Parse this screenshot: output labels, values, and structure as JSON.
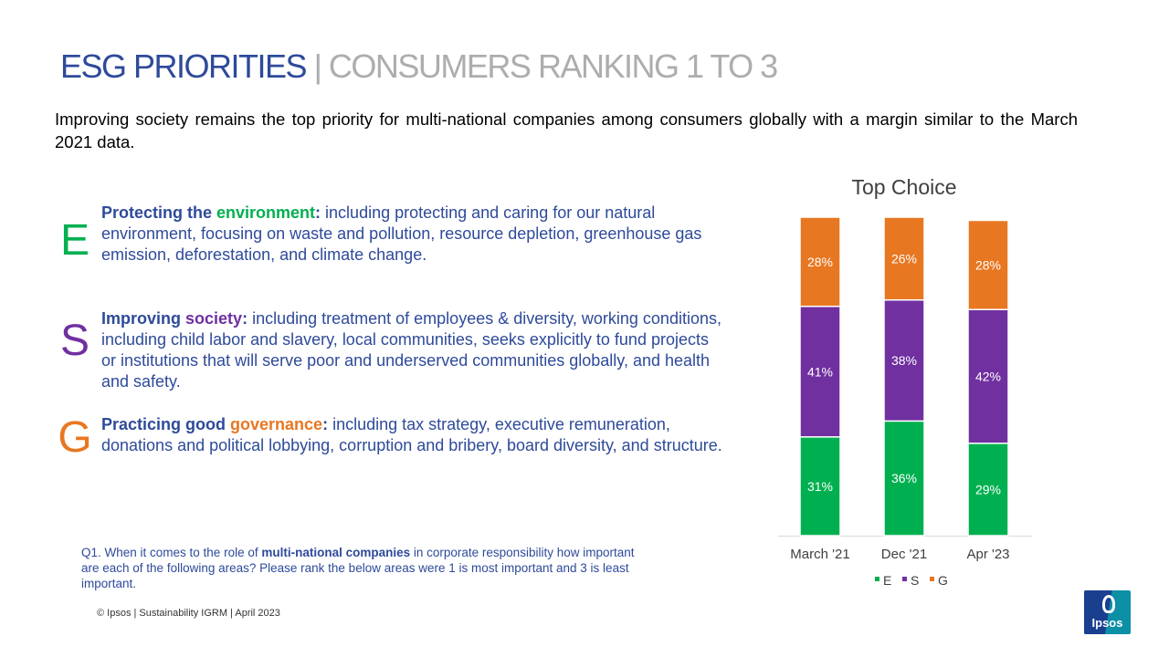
{
  "header": {
    "title_main": "ESG PRIORITIES",
    "title_sep": " | ",
    "title_sub": "CONSUMERS RANKING 1 TO 3"
  },
  "intro": "Improving society remains the top priority for multi-national companies among consumers globally with a margin similar to the March 2021 data.",
  "esg": {
    "e": {
      "letter": "E",
      "lead_a": "Protecting the ",
      "keyword": "environment",
      "lead_b": ":",
      "body": "  including protecting and caring for our natural environment, focusing on waste and pollution, resource depletion, greenhouse gas emission, deforestation, and climate change."
    },
    "s": {
      "letter": "S",
      "lead_a": "Improving ",
      "keyword": "society",
      "lead_b": ":",
      "body": "  including treatment of employees & diversity, working conditions, including child labor and slavery, local communities, seeks explicitly to fund projects or institutions that will serve poor and underserved communities globally, and health and safety."
    },
    "g": {
      "letter": "G",
      "lead_a": "Practicing good ",
      "keyword": "governance",
      "lead_b": ":",
      "body": "  including tax strategy, executive remuneration, donations and political lobbying, corruption and bribery, board diversity, and structure."
    }
  },
  "question": {
    "a": "Q1. When it comes to the role of ",
    "bold": "multi-national companies",
    "b": " in corporate responsibility how important are each of the following areas? Please rank the below areas were 1 is most important and 3 is least important."
  },
  "footer": "© Ipsos | Sustainability IGRM | April 2023",
  "logo_text": "Ipsos",
  "colors": {
    "E": "#00B050",
    "S": "#7030A0",
    "G": "#E87722",
    "title": "#2E4A9A"
  },
  "chart_data": {
    "type": "bar",
    "stacked": true,
    "title": "Top Choice",
    "categories": [
      "March '21",
      "Dec '21",
      "Apr '23"
    ],
    "series": [
      {
        "name": "E",
        "values": [
          31,
          36,
          29
        ],
        "labels": [
          "31%",
          "36%",
          "29%"
        ],
        "color": "#00B050"
      },
      {
        "name": "S",
        "values": [
          41,
          38,
          42
        ],
        "labels": [
          "41%",
          "38%",
          "42%"
        ],
        "color": "#7030A0"
      },
      {
        "name": "G",
        "values": [
          28,
          26,
          28
        ],
        "labels": [
          "28%",
          "26%",
          "28%"
        ],
        "color": "#E87722"
      }
    ],
    "ylim": [
      0,
      100
    ],
    "grid": false,
    "legend": "bottom"
  }
}
